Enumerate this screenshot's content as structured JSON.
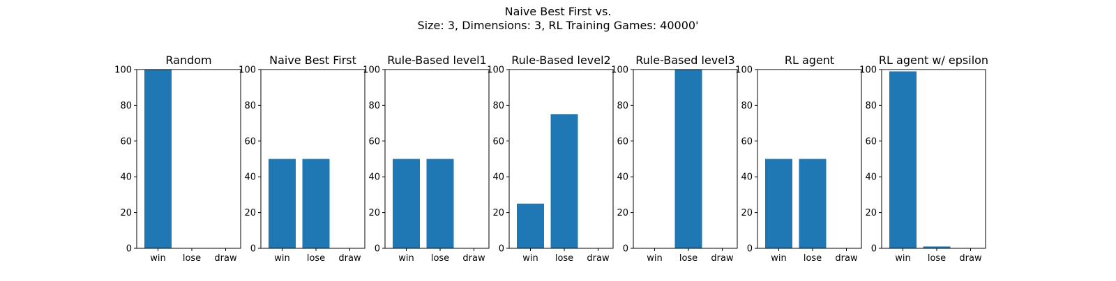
{
  "suptitle": {
    "line1": "Naive Best First vs.",
    "line2": "Size: 3, Dimensions: 3, RL Training Games: 40000'"
  },
  "bar_color": "#1f77b4",
  "chart_data": [
    {
      "type": "bar",
      "title": "Random",
      "categories": [
        "win",
        "lose",
        "draw"
      ],
      "values": [
        100,
        0,
        0
      ],
      "ylim": [
        0,
        100
      ],
      "yticks": [
        0,
        20,
        40,
        60,
        80,
        100
      ],
      "grid": false
    },
    {
      "type": "bar",
      "title": "Naive Best First",
      "categories": [
        "win",
        "lose",
        "draw"
      ],
      "values": [
        50,
        50,
        0
      ],
      "ylim": [
        0,
        100
      ],
      "yticks": [
        0,
        20,
        40,
        60,
        80,
        100
      ],
      "grid": false
    },
    {
      "type": "bar",
      "title": "Rule-Based level1",
      "categories": [
        "win",
        "lose",
        "draw"
      ],
      "values": [
        50,
        50,
        0
      ],
      "ylim": [
        0,
        100
      ],
      "yticks": [
        0,
        20,
        40,
        60,
        80,
        100
      ],
      "grid": false
    },
    {
      "type": "bar",
      "title": "Rule-Based level2",
      "categories": [
        "win",
        "lose",
        "draw"
      ],
      "values": [
        25,
        75,
        0
      ],
      "ylim": [
        0,
        100
      ],
      "yticks": [
        0,
        20,
        40,
        60,
        80,
        100
      ],
      "grid": false
    },
    {
      "type": "bar",
      "title": "Rule-Based level3",
      "categories": [
        "win",
        "lose",
        "draw"
      ],
      "values": [
        0,
        100,
        0
      ],
      "ylim": [
        0,
        100
      ],
      "yticks": [
        0,
        20,
        40,
        60,
        80,
        100
      ],
      "grid": false
    },
    {
      "type": "bar",
      "title": "RL agent",
      "categories": [
        "win",
        "lose",
        "draw"
      ],
      "values": [
        50,
        50,
        0
      ],
      "ylim": [
        0,
        100
      ],
      "yticks": [
        0,
        20,
        40,
        60,
        80,
        100
      ],
      "grid": false
    },
    {
      "type": "bar",
      "title": "RL agent w/ epsilon",
      "categories": [
        "win",
        "lose",
        "draw"
      ],
      "values": [
        99,
        1,
        0
      ],
      "ylim": [
        0,
        100
      ],
      "yticks": [
        0,
        20,
        40,
        60,
        80,
        100
      ],
      "grid": false
    }
  ]
}
